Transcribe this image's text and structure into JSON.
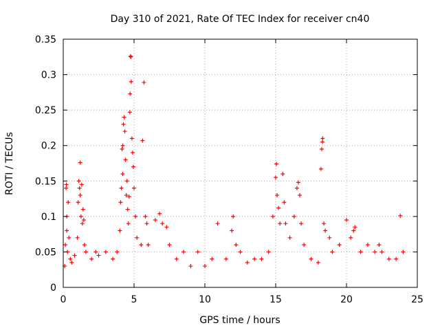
{
  "chart_data": {
    "type": "scatter",
    "title": "Day 310 of 2021, Rate Of TEC Index for receiver cn40",
    "xlabel": "GPS time / hours",
    "ylabel": "ROTI / TECUs",
    "xlim": [
      0,
      25
    ],
    "ylim": [
      0,
      0.35
    ],
    "x_ticks": [
      0,
      5,
      10,
      15,
      20,
      25
    ],
    "x_tick_labels": [
      "0",
      "5",
      "10",
      "15",
      "20",
      "25"
    ],
    "y_ticks": [
      0,
      0.05,
      0.1,
      0.15,
      0.2,
      0.25,
      0.3,
      0.35
    ],
    "y_tick_labels": [
      "0",
      "0.05",
      "0.1",
      "0.15",
      "0.2",
      "0.25",
      "0.3",
      "0.35"
    ],
    "grid": true,
    "marker": "+",
    "marker_color": "#ff0000",
    "series": [
      {
        "name": "ROTI",
        "points": [
          [
            0.1,
            0.03
          ],
          [
            0.15,
            0.06
          ],
          [
            0.2,
            0.14
          ],
          [
            0.22,
            0.145
          ],
          [
            0.25,
            0.1
          ],
          [
            0.25,
            0.08
          ],
          [
            0.3,
            0.05
          ],
          [
            0.35,
            0.12
          ],
          [
            0.4,
            0.07
          ],
          [
            0.5,
            0.04
          ],
          [
            0.6,
            0.035
          ],
          [
            0.8,
            0.045
          ],
          [
            1.0,
            0.07
          ],
          [
            1.05,
            0.12
          ],
          [
            1.1,
            0.15
          ],
          [
            1.15,
            0.14
          ],
          [
            1.2,
            0.13
          ],
          [
            1.2,
            0.176
          ],
          [
            1.25,
            0.1
          ],
          [
            1.3,
            0.145
          ],
          [
            1.35,
            0.09
          ],
          [
            1.4,
            0.11
          ],
          [
            1.45,
            0.095
          ],
          [
            1.5,
            0.06
          ],
          [
            1.6,
            0.05
          ],
          [
            2.0,
            0.04
          ],
          [
            2.3,
            0.05
          ],
          [
            2.5,
            0.045
          ],
          [
            3.0,
            0.05
          ],
          [
            3.5,
            0.04
          ],
          [
            3.8,
            0.05
          ],
          [
            4.0,
            0.08
          ],
          [
            4.05,
            0.12
          ],
          [
            4.1,
            0.14
          ],
          [
            4.15,
            0.195
          ],
          [
            4.2,
            0.2
          ],
          [
            4.2,
            0.16
          ],
          [
            4.25,
            0.23
          ],
          [
            4.3,
            0.24
          ],
          [
            4.35,
            0.22
          ],
          [
            4.4,
            0.18
          ],
          [
            4.45,
            0.13
          ],
          [
            4.5,
            0.15
          ],
          [
            4.55,
            0.11
          ],
          [
            4.6,
            0.09
          ],
          [
            4.65,
            0.128
          ],
          [
            4.7,
            0.247
          ],
          [
            4.72,
            0.273
          ],
          [
            4.75,
            0.326
          ],
          [
            4.78,
            0.325
          ],
          [
            4.8,
            0.29
          ],
          [
            4.85,
            0.21
          ],
          [
            4.9,
            0.19
          ],
          [
            4.95,
            0.17
          ],
          [
            5.0,
            0.14
          ],
          [
            5.1,
            0.1
          ],
          [
            5.2,
            0.07
          ],
          [
            5.5,
            0.06
          ],
          [
            5.6,
            0.207
          ],
          [
            5.7,
            0.289
          ],
          [
            5.8,
            0.1
          ],
          [
            5.9,
            0.09
          ],
          [
            6.0,
            0.06
          ],
          [
            6.5,
            0.095
          ],
          [
            6.8,
            0.104
          ],
          [
            7.0,
            0.09
          ],
          [
            7.3,
            0.085
          ],
          [
            7.5,
            0.06
          ],
          [
            8.0,
            0.04
          ],
          [
            8.5,
            0.05
          ],
          [
            9.0,
            0.03
          ],
          [
            9.5,
            0.05
          ],
          [
            10.0,
            0.03
          ],
          [
            10.5,
            0.04
          ],
          [
            10.9,
            0.09
          ],
          [
            11.5,
            0.04
          ],
          [
            11.9,
            0.08
          ],
          [
            12.0,
            0.1
          ],
          [
            12.2,
            0.06
          ],
          [
            12.5,
            0.05
          ],
          [
            13.0,
            0.035
          ],
          [
            13.5,
            0.04
          ],
          [
            14.0,
            0.04
          ],
          [
            14.5,
            0.05
          ],
          [
            14.8,
            0.1
          ],
          [
            15.0,
            0.155
          ],
          [
            15.05,
            0.174
          ],
          [
            15.1,
            0.13
          ],
          [
            15.2,
            0.112
          ],
          [
            15.3,
            0.09
          ],
          [
            15.5,
            0.16
          ],
          [
            15.6,
            0.12
          ],
          [
            15.7,
            0.09
          ],
          [
            16.0,
            0.07
          ],
          [
            16.3,
            0.1
          ],
          [
            16.5,
            0.14
          ],
          [
            16.6,
            0.148
          ],
          [
            16.7,
            0.13
          ],
          [
            16.8,
            0.09
          ],
          [
            17.0,
            0.06
          ],
          [
            17.5,
            0.04
          ],
          [
            18.0,
            0.035
          ],
          [
            18.2,
            0.167
          ],
          [
            18.25,
            0.195
          ],
          [
            18.3,
            0.205
          ],
          [
            18.32,
            0.21
          ],
          [
            18.4,
            0.09
          ],
          [
            18.5,
            0.08
          ],
          [
            18.8,
            0.07
          ],
          [
            19.0,
            0.05
          ],
          [
            19.5,
            0.06
          ],
          [
            20.0,
            0.095
          ],
          [
            20.3,
            0.07
          ],
          [
            20.5,
            0.08
          ],
          [
            20.6,
            0.085
          ],
          [
            21.0,
            0.05
          ],
          [
            21.5,
            0.06
          ],
          [
            22.0,
            0.05
          ],
          [
            22.3,
            0.06
          ],
          [
            22.5,
            0.05
          ],
          [
            23.0,
            0.04
          ],
          [
            23.5,
            0.04
          ],
          [
            23.8,
            0.101
          ],
          [
            24.0,
            0.05
          ]
        ]
      }
    ]
  }
}
